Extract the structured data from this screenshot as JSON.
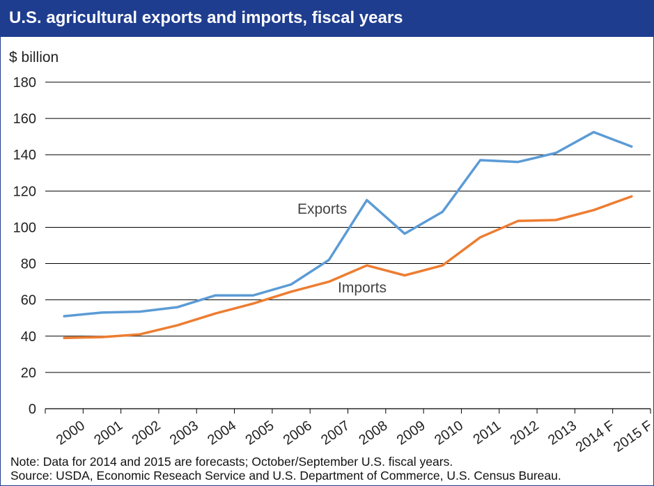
{
  "header": {
    "title": "U.S. agricultural exports and imports, fiscal years"
  },
  "footer": {
    "note": "Note: Data for 2014 and 2015 are forecasts; October/September U.S. fiscal years.",
    "source": "Source: USDA, Economic Reseach Service and U.S. Department of Commerce, U.S. Census Bureau."
  },
  "colors": {
    "header_bg": "#1f3d8f",
    "exports": "#5b9bd5",
    "imports": "#ed7d31"
  },
  "chart_data": {
    "type": "line",
    "title": "U.S. agricultural exports and imports, fiscal years",
    "ylabel": "$ billion",
    "xlabel": "",
    "ylim": [
      0,
      180
    ],
    "yticks": [
      0,
      20,
      40,
      60,
      80,
      100,
      120,
      140,
      160,
      180
    ],
    "grid": true,
    "legend": "inline labels",
    "categories": [
      "2000",
      "2001",
      "2002",
      "2003",
      "2004",
      "2005",
      "2006",
      "2007",
      "2008",
      "2009",
      "2010",
      "2011",
      "2012",
      "2013",
      "2014 F",
      "2015 F"
    ],
    "series": [
      {
        "name": "Exports",
        "color": "#5b9bd5",
        "values": [
          51,
          53,
          53.5,
          56,
          62.5,
          62.5,
          68.5,
          82,
          115,
          96.5,
          108.5,
          137,
          136,
          141,
          152.5,
          144.5
        ]
      },
      {
        "name": "Imports",
        "color": "#ed7d31",
        "values": [
          39,
          39.5,
          41,
          46,
          52.5,
          58,
          64.5,
          70,
          79,
          73.5,
          79,
          94.5,
          103.5,
          104,
          109.5,
          117
        ]
      }
    ]
  }
}
